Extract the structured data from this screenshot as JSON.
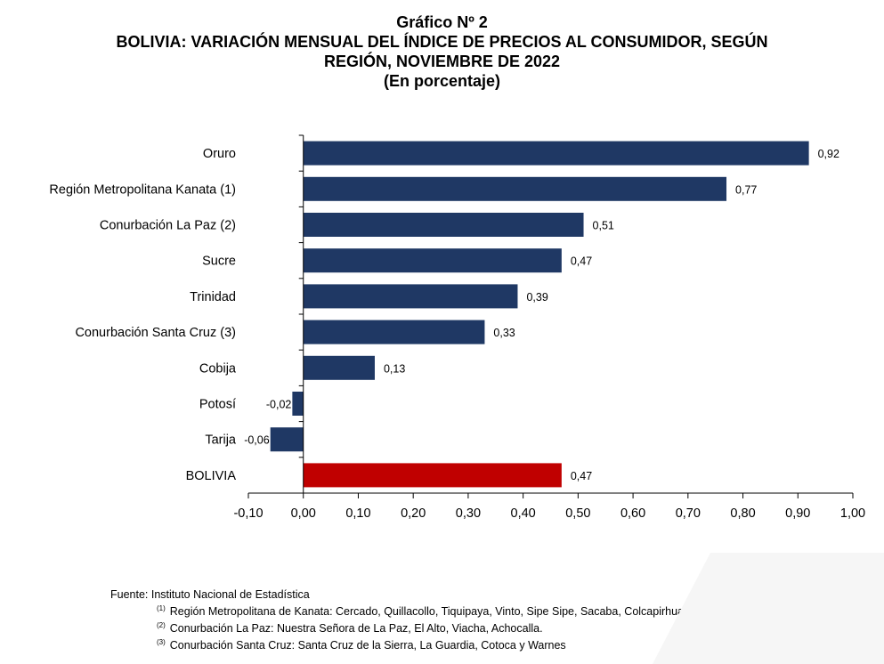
{
  "chart_data": {
    "type": "bar",
    "orientation": "horizontal",
    "title_lines": [
      "Gráfico Nº 2",
      "BOLIVIA: VARIACIÓN MENSUAL DEL ÍNDICE DE PRECIOS AL CONSUMIDOR, SEGÚN",
      "REGIÓN, NOVIEMBRE DE 2022",
      "(En porcentaje)"
    ],
    "categories": [
      "Oruro",
      "Región Metropolitana Kanata (1)",
      "Conurbación La Paz (2)",
      "Sucre",
      "Trinidad",
      "Conurbación Santa Cruz (3)",
      "Cobija",
      "Potosí",
      "Tarija",
      "BOLIVIA"
    ],
    "values": [
      0.92,
      0.77,
      0.51,
      0.47,
      0.39,
      0.33,
      0.13,
      -0.02,
      -0.06,
      0.47
    ],
    "value_labels": [
      "0,92",
      "0,77",
      "0,51",
      "0,47",
      "0,39",
      "0,33",
      "0,13",
      "-0,02",
      "-0,06",
      "0,47"
    ],
    "bar_colors": [
      "#1f3864",
      "#1f3864",
      "#1f3864",
      "#1f3864",
      "#1f3864",
      "#1f3864",
      "#1f3864",
      "#1f3864",
      "#1f3864",
      "#c00000"
    ],
    "xlim": [
      -0.1,
      1.0
    ],
    "ticks": [
      -0.1,
      0,
      0.1,
      0.2,
      0.3,
      0.4,
      0.5,
      0.6,
      0.7,
      0.8,
      0.9,
      1.0
    ],
    "tick_labels": [
      "-0,10",
      "0,00",
      "0,10",
      "0,20",
      "0,30",
      "0,40",
      "0,50",
      "0,60",
      "0,70",
      "0,80",
      "0,90",
      "1,00"
    ],
    "grid": false,
    "legend": "none"
  },
  "notes": {
    "source": "Fuente: Instituto Nacional de Estadística",
    "footnotes": [
      {
        "mark": "(1)",
        "text": "Región Metropolitana de Kanata: Cercado, Quillacollo, Tiquipaya, Vinto, Sipe Sipe, Sacaba, Colcapirhua."
      },
      {
        "mark": "(2)",
        "text": "Conurbación La Paz: Nuestra Señora de La Paz, El Alto, Viacha, Achocalla."
      },
      {
        "mark": "(3)",
        "text": "Conurbación Santa Cruz: Santa Cruz de la Sierra, La Guardia, Cotoca y Warnes"
      }
    ]
  }
}
